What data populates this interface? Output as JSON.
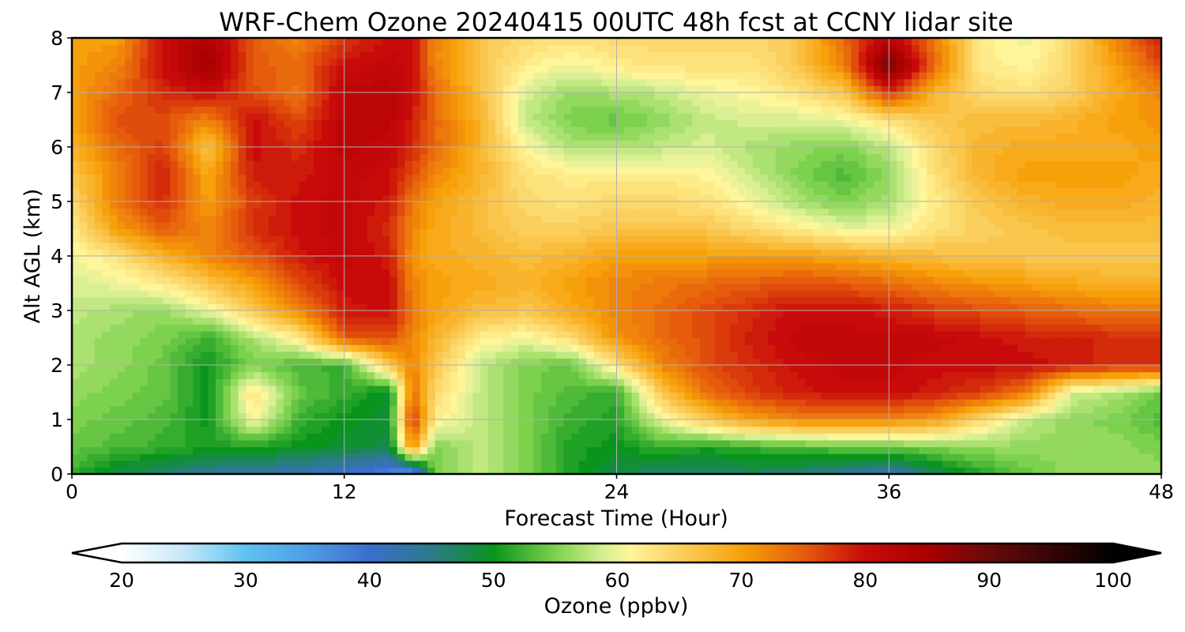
{
  "chart_data": {
    "type": "heatmap",
    "title": "WRF-Chem Ozone  20240415 00UTC 48h fcst at CCNY lidar site",
    "xlabel": "Forecast Time (Hour)",
    "ylabel": "Alt AGL (km)",
    "xlim": [
      0,
      48
    ],
    "ylim": [
      0,
      8
    ],
    "xticks": [
      0,
      12,
      24,
      36,
      48
    ],
    "yticks": [
      0,
      1,
      2,
      3,
      4,
      5,
      6,
      7,
      8
    ],
    "grid": true,
    "x": [
      0,
      2,
      4,
      6,
      8,
      10,
      12,
      14,
      15,
      16,
      18,
      20,
      22,
      24,
      26,
      28,
      30,
      32,
      34,
      36,
      38,
      40,
      42,
      44,
      46,
      48
    ],
    "y": [
      0,
      0.5,
      1,
      1.5,
      2,
      2.5,
      3,
      3.5,
      4,
      4.5,
      5,
      5.5,
      6,
      6.5,
      7,
      7.5,
      8
    ],
    "values": [
      [
        52,
        48,
        46,
        44,
        43,
        42,
        40,
        37,
        33,
        55,
        58,
        55,
        51,
        48,
        46,
        46,
        47,
        46,
        44,
        42,
        47,
        51,
        54,
        56,
        56,
        56
      ],
      [
        54,
        53,
        52,
        51,
        51,
        50,
        49,
        48,
        72,
        55,
        58,
        55,
        51,
        50,
        52,
        51,
        52,
        53,
        54,
        54,
        55,
        56,
        56,
        56,
        56,
        55
      ],
      [
        55,
        54,
        53,
        50,
        61,
        52,
        50,
        49,
        78,
        62,
        58,
        55,
        52,
        51,
        60,
        66,
        70,
        72,
        72,
        72,
        70,
        64,
        58,
        56,
        55,
        53
      ],
      [
        56,
        55,
        54,
        50,
        63,
        54,
        52,
        49,
        74,
        64,
        58,
        55,
        53,
        52,
        66,
        74,
        77,
        79,
        80,
        80,
        79,
        77,
        73,
        59,
        57,
        54
      ],
      [
        57,
        56,
        54,
        50,
        55,
        53,
        52,
        66,
        72,
        66,
        58,
        55,
        54,
        63,
        72,
        76,
        78,
        80,
        81,
        81,
        80,
        80,
        80,
        79,
        78,
        78
      ],
      [
        57,
        56,
        55,
        52,
        57,
        62,
        75,
        76,
        72,
        68,
        62,
        60,
        64,
        71,
        74,
        76,
        79,
        81,
        81,
        81,
        81,
        80,
        79,
        79,
        78,
        78
      ],
      [
        58,
        57,
        56,
        60,
        66,
        72,
        79,
        80,
        73,
        70,
        67,
        66,
        69,
        72,
        74,
        76,
        78,
        80,
        80,
        79,
        77,
        76,
        75,
        74,
        73,
        73
      ],
      [
        59,
        60,
        62,
        66,
        70,
        76,
        80,
        80,
        72,
        70,
        69,
        68,
        70,
        72,
        73,
        74,
        75,
        76,
        75,
        74,
        72,
        71,
        70,
        69,
        68,
        68
      ],
      [
        60,
        63,
        68,
        72,
        75,
        79,
        81,
        79,
        71,
        69,
        68,
        67,
        68,
        70,
        70,
        70,
        70,
        70,
        69,
        68,
        67,
        66,
        66,
        66,
        66,
        66
      ],
      [
        62,
        70,
        75,
        72,
        78,
        80,
        81,
        78,
        72,
        69,
        67,
        65,
        65,
        66,
        66,
        66,
        64,
        62,
        60,
        60,
        63,
        65,
        66,
        67,
        67,
        67
      ],
      [
        64,
        73,
        78,
        70,
        77,
        80,
        81,
        79,
        73,
        70,
        67,
        64,
        63,
        64,
        64,
        63,
        60,
        57,
        55,
        57,
        62,
        66,
        68,
        69,
        69,
        68
      ],
      [
        66,
        72,
        79,
        69,
        79,
        79,
        81,
        80,
        76,
        72,
        68,
        63,
        62,
        62,
        62,
        61,
        58,
        55,
        53,
        56,
        63,
        68,
        70,
        70,
        70,
        69
      ],
      [
        68,
        74,
        77,
        66,
        80,
        78,
        82,
        81,
        78,
        74,
        68,
        61,
        57,
        57,
        58,
        59,
        57,
        56,
        55,
        58,
        64,
        68,
        69,
        69,
        69,
        70
      ],
      [
        70,
        76,
        76,
        72,
        80,
        76,
        82,
        82,
        79,
        74,
        68,
        58,
        55,
        54,
        56,
        58,
        59,
        59,
        60,
        63,
        66,
        67,
        67,
        68,
        70,
        71
      ],
      [
        70,
        74,
        78,
        80,
        76,
        73,
        82,
        82,
        80,
        74,
        67,
        59,
        56,
        57,
        58,
        60,
        61,
        63,
        66,
        78,
        68,
        64,
        63,
        65,
        69,
        72
      ],
      [
        70,
        72,
        80,
        86,
        75,
        74,
        80,
        81,
        80,
        72,
        66,
        62,
        60,
        62,
        63,
        63,
        63,
        66,
        72,
        90,
        74,
        62,
        61,
        64,
        70,
        76
      ],
      [
        70,
        70,
        80,
        84,
        75,
        72,
        77,
        80,
        80,
        72,
        66,
        64,
        63,
        64,
        64,
        64,
        64,
        66,
        74,
        82,
        73,
        62,
        60,
        64,
        72,
        79
      ]
    ],
    "colorbar": {
      "label": "Ozone  (ppbv)",
      "min": 20,
      "max": 100,
      "ticks": [
        20,
        30,
        40,
        50,
        60,
        70,
        80,
        90,
        100
      ],
      "extend": "both",
      "stops": [
        [
          20,
          "#ffffff"
        ],
        [
          25,
          "#c6e8f8"
        ],
        [
          30,
          "#5ec3f0"
        ],
        [
          35,
          "#4f9de6"
        ],
        [
          40,
          "#3a6fcc"
        ],
        [
          45,
          "#2c7a8a"
        ],
        [
          50,
          "#09951c"
        ],
        [
          55,
          "#7dd24d"
        ],
        [
          59,
          "#d9ef93"
        ],
        [
          61,
          "#fff59a"
        ],
        [
          65,
          "#fbcf5e"
        ],
        [
          70,
          "#f7a10a"
        ],
        [
          75,
          "#e65c0c"
        ],
        [
          80,
          "#c80a0a"
        ],
        [
          85,
          "#a90000"
        ],
        [
          90,
          "#6a0a0a"
        ],
        [
          100,
          "#000000"
        ]
      ]
    }
  }
}
